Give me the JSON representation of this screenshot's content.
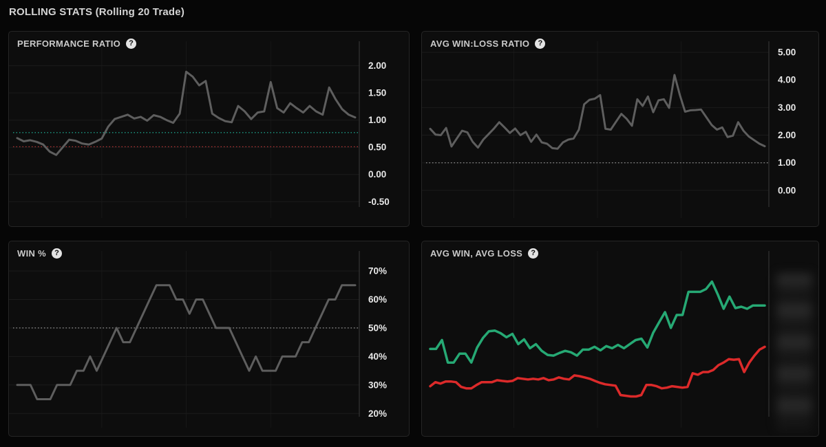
{
  "page": {
    "title": "ROLLING STATS (Rolling 20 Trade)"
  },
  "colors": {
    "background": "#060606",
    "panel_background": "#0d0d0d",
    "panel_border": "#262626",
    "grid_line": "#1b1b1b",
    "axis_line": "#3a3a3a",
    "tick_label": "#e8e8e8",
    "gray_series": "#5e5e5e",
    "green_series": "#26a974",
    "red_series": "#dc2a2a",
    "teal_ref": "#1da18a",
    "red_ref": "#b43535",
    "gray_ref": "#8a8a8a"
  },
  "panels": [
    {
      "title": "PERFORMANCE RATIO",
      "help_glyph": "?"
    },
    {
      "title": "AVG WIN:LOSS RATIO",
      "help_glyph": "?"
    },
    {
      "title": "WIN %",
      "help_glyph": "?"
    },
    {
      "title": "AVG WIN, AVG LOSS",
      "help_glyph": "?"
    }
  ],
  "chart_data": [
    {
      "type": "line",
      "title": "PERFORMANCE RATIO",
      "xlabel": "",
      "ylabel": "",
      "ylim": [
        -0.8,
        2.45
      ],
      "grid": true,
      "legend_position": "none",
      "y_ticks": [
        {
          "label": "2.00",
          "value": 2.0
        },
        {
          "label": "1.50",
          "value": 1.5
        },
        {
          "label": "1.00",
          "value": 1.0
        },
        {
          "label": "0.50",
          "value": 0.5
        },
        {
          "label": "0.00",
          "value": 0.0
        },
        {
          "label": "-0.50",
          "value": -0.5
        }
      ],
      "ref_lines": [
        {
          "name": "upper-benchmark",
          "value": 0.77,
          "color": "#1da18a",
          "style": "dotted"
        },
        {
          "name": "lower-benchmark",
          "value": 0.51,
          "color": "#b43535",
          "style": "dotted"
        }
      ],
      "series": [
        {
          "name": "performance-ratio",
          "color": "#5e5e5e",
          "width": 3,
          "values": [
            0.67,
            0.61,
            0.63,
            0.6,
            0.55,
            0.42,
            0.36,
            0.5,
            0.64,
            0.62,
            0.57,
            0.55,
            0.6,
            0.66,
            0.88,
            1.02,
            1.06,
            1.1,
            1.03,
            1.06,
            0.99,
            1.09,
            1.06,
            1.0,
            0.95,
            1.12,
            1.89,
            1.8,
            1.64,
            1.72,
            1.12,
            1.04,
            0.98,
            0.96,
            1.26,
            1.16,
            1.02,
            1.14,
            1.16,
            1.7,
            1.22,
            1.14,
            1.31,
            1.22,
            1.14,
            1.26,
            1.16,
            1.1,
            1.6,
            1.38,
            1.2,
            1.1,
            1.05
          ]
        }
      ]
    },
    {
      "type": "line",
      "title": "AVG WIN:LOSS RATIO",
      "xlabel": "",
      "ylabel": "",
      "ylim": [
        -1.0,
        5.4
      ],
      "grid": true,
      "legend_position": "none",
      "y_ticks": [
        {
          "label": "5.00",
          "value": 5.0
        },
        {
          "label": "4.00",
          "value": 4.0
        },
        {
          "label": "3.00",
          "value": 3.0
        },
        {
          "label": "2.00",
          "value": 2.0
        },
        {
          "label": "1.00",
          "value": 1.0
        },
        {
          "label": "0.00",
          "value": 0.0
        }
      ],
      "ref_lines": [
        {
          "name": "breakeven-line",
          "value": 1.0,
          "color": "#8a8a8a",
          "style": "dotted"
        }
      ],
      "series": [
        {
          "name": "avg-win-loss-ratio",
          "color": "#5e5e5e",
          "width": 3,
          "values": [
            2.23,
            2.02,
            2.0,
            2.26,
            1.59,
            1.88,
            2.16,
            2.1,
            1.76,
            1.55,
            1.84,
            2.04,
            2.24,
            2.47,
            2.28,
            2.08,
            2.24,
            2.0,
            2.12,
            1.76,
            2.02,
            1.74,
            1.69,
            1.53,
            1.51,
            1.74,
            1.84,
            1.88,
            2.2,
            3.12,
            3.28,
            3.32,
            3.45,
            2.23,
            2.2,
            2.49,
            2.77,
            2.59,
            2.34,
            3.3,
            3.06,
            3.4,
            2.83,
            3.26,
            3.3,
            2.99,
            4.18,
            3.46,
            2.85,
            2.9,
            2.91,
            2.93,
            2.65,
            2.37,
            2.2,
            2.28,
            1.93,
            1.98,
            2.47,
            2.16,
            1.95,
            1.82,
            1.69,
            1.6
          ]
        }
      ]
    },
    {
      "type": "line",
      "title": "WIN %",
      "xlabel": "",
      "ylabel": "",
      "ylim": [
        15,
        77
      ],
      "grid": true,
      "legend_position": "none",
      "y_ticks": [
        {
          "label": "70%",
          "value": 70
        },
        {
          "label": "60%",
          "value": 60
        },
        {
          "label": "50%",
          "value": 50
        },
        {
          "label": "40%",
          "value": 40
        },
        {
          "label": "30%",
          "value": 30
        },
        {
          "label": "20%",
          "value": 20
        }
      ],
      "ref_lines": [
        {
          "name": "fifty-percent-line",
          "value": 50,
          "color": "#9a9a9a",
          "style": "dotted"
        }
      ],
      "series": [
        {
          "name": "win-percent",
          "color": "#5e5e5e",
          "width": 3,
          "values": [
            30,
            30,
            30,
            25,
            25,
            25,
            30,
            30,
            30,
            35,
            35,
            40,
            35,
            40,
            45,
            50,
            45,
            45,
            50,
            55,
            60,
            65,
            65,
            65,
            60,
            60,
            55,
            60,
            60,
            55,
            50,
            50,
            50,
            45,
            40,
            35,
            40,
            35,
            35,
            35,
            40,
            40,
            40,
            45,
            45,
            50,
            55,
            60,
            60,
            65,
            65,
            65
          ]
        }
      ]
    },
    {
      "type": "line",
      "title": "AVG WIN, AVG LOSS",
      "xlabel": "",
      "ylabel": "",
      "ylim": [
        0,
        100
      ],
      "grid": true,
      "legend_position": "none",
      "y_axis_redacted": true,
      "y_ticks": [],
      "ref_lines": [],
      "series": [
        {
          "name": "avg-win",
          "color": "#26a974",
          "width": 3.5,
          "values": [
            44.6,
            44.6,
            49.6,
            36.9,
            36.9,
            41.9,
            41.9,
            36.9,
            45.4,
            50.8,
            54.6,
            55.0,
            53.5,
            51.2,
            53.1,
            47.3,
            50.0,
            45.0,
            47.3,
            43.5,
            41.2,
            40.8,
            42.3,
            43.5,
            42.7,
            40.8,
            44.2,
            44.2,
            45.8,
            43.8,
            46.2,
            45.0,
            46.9,
            45.0,
            47.3,
            49.6,
            50.4,
            45.4,
            53.8,
            59.6,
            65.4,
            56.5,
            63.8,
            63.8,
            76.9,
            76.9,
            76.9,
            78.5,
            82.7,
            75.4,
            67.3,
            74.2,
            67.7,
            68.5,
            67.3,
            69.2,
            69.2,
            69.2
          ]
        },
        {
          "name": "avg-loss",
          "color": "#dc2a2a",
          "width": 3.5,
          "values": [
            23.5,
            25.8,
            25.0,
            26.2,
            26.2,
            25.8,
            23.1,
            22.3,
            22.3,
            24.2,
            25.8,
            25.8,
            25.8,
            26.9,
            26.5,
            26.2,
            26.5,
            28.1,
            27.7,
            27.3,
            27.7,
            27.3,
            28.1,
            26.9,
            27.3,
            28.5,
            27.7,
            27.3,
            29.6,
            29.2,
            28.5,
            27.7,
            26.5,
            25.4,
            24.6,
            24.2,
            23.8,
            18.5,
            18.1,
            17.7,
            17.7,
            18.5,
            24.2,
            24.2,
            23.5,
            22.3,
            22.7,
            23.5,
            23.1,
            22.7,
            23.1,
            30.8,
            30.0,
            31.5,
            31.5,
            32.7,
            35.4,
            36.9,
            38.8,
            38.5,
            38.8,
            31.5,
            36.9,
            40.8,
            44.2,
            45.8
          ]
        }
      ]
    }
  ]
}
